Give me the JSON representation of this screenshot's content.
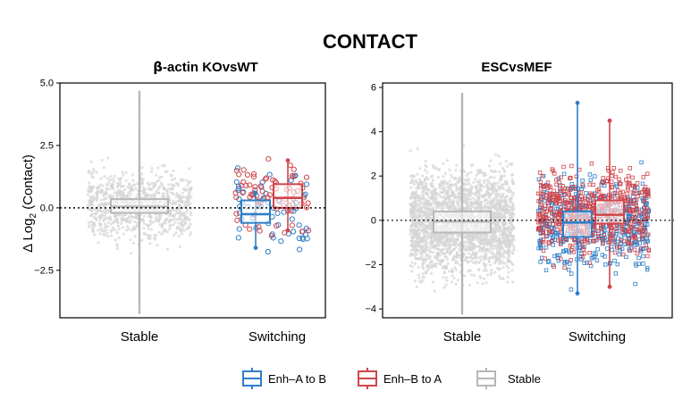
{
  "title": "CONTACT",
  "ylabel": "Δ Log2 (Contact)",
  "ylabel_main": "Δ Log",
  "ylabel_sub": "2",
  "ylabel_rest": " (Contact)",
  "legend": [
    {
      "label": "Enh–A to B",
      "color": "#2f7fc8"
    },
    {
      "label": "Enh–B to A",
      "color": "#d0454b"
    },
    {
      "label": "Stable",
      "color": "#b8b8b8"
    }
  ],
  "colors": {
    "a_to_b": "#2f7fc8",
    "b_to_a": "#d0454b",
    "stable": "#b8b8b8"
  },
  "chart_data": [
    {
      "type": "box",
      "panel_title": "β-actin KOvsWT",
      "title_greek": "β",
      "title_rest": "-actin KOvsWT",
      "xlabel": "",
      "categories": [
        "Stable",
        "Switching"
      ],
      "ylim": [
        -4.4,
        5.0
      ],
      "yticks": [
        -2.5,
        0.0,
        2.5,
        5.0
      ],
      "ytick_labels": [
        "−2.5",
        "0.0",
        "2.5",
        "5.0"
      ],
      "reference_line": 0,
      "series": [
        {
          "name": "Stable",
          "category": "Stable",
          "q1": -0.2,
          "median": 0.05,
          "q3": 0.35,
          "whisker_low": -4.2,
          "whisker_high": 4.7,
          "n_points": 900
        },
        {
          "name": "Enh–A to B",
          "category": "Switching",
          "q1": -0.6,
          "median": -0.25,
          "q3": 0.3,
          "whisker_low": -1.6,
          "whisker_high": 0.6,
          "n_points": 60
        },
        {
          "name": "Enh–B to A",
          "category": "Switching",
          "q1": 0.0,
          "median": 0.4,
          "q3": 0.95,
          "whisker_low": -0.9,
          "whisker_high": 1.9,
          "n_points": 70
        }
      ]
    },
    {
      "type": "box",
      "panel_title": "ESCvsMEF",
      "xlabel": "",
      "categories": [
        "Stable",
        "Switching"
      ],
      "ylim": [
        -4.4,
        6.2
      ],
      "yticks": [
        -4,
        -2,
        0,
        2,
        4,
        6
      ],
      "ytick_labels": [
        "−4",
        "−2",
        "0",
        "2",
        "4",
        "6"
      ],
      "reference_line": 0,
      "series": [
        {
          "name": "Stable",
          "category": "Stable",
          "q1": -0.55,
          "median": -0.05,
          "q3": 0.4,
          "whisker_low": -4.2,
          "whisker_high": 5.7,
          "n_points": 2500
        },
        {
          "name": "Enh–A to B",
          "category": "Switching",
          "q1": -0.75,
          "median": -0.1,
          "q3": 0.4,
          "whisker_low": -3.3,
          "whisker_high": 5.3,
          "n_points": 500
        },
        {
          "name": "Enh–B to A",
          "category": "Switching",
          "q1": -0.15,
          "median": 0.25,
          "q3": 0.9,
          "whisker_low": -3.0,
          "whisker_high": 4.5,
          "n_points": 550
        }
      ]
    }
  ]
}
